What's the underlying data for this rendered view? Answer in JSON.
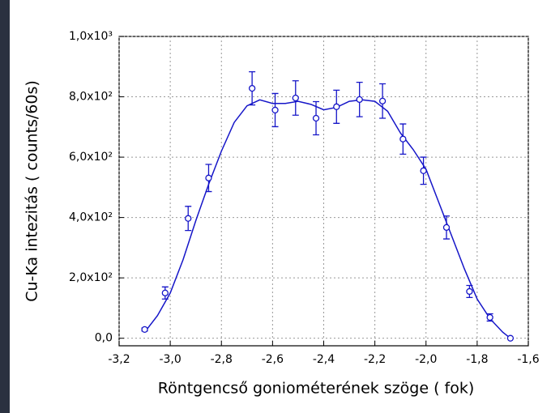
{
  "chart_data": {
    "type": "scatter",
    "x_label": "Röntgencső goniométerének szöge (   fok)",
    "y_label": "Cu-Ka intezitás (  counts/60s)",
    "x": [
      -3.1,
      -3.02,
      -2.93,
      -2.85,
      -2.68,
      -2.59,
      -2.51,
      -2.43,
      -2.35,
      -2.26,
      -2.17,
      -2.09,
      -2.01,
      -1.92,
      -1.83,
      -1.75,
      -1.67
    ],
    "values": [
      29,
      150,
      397,
      531,
      828,
      756,
      796,
      729,
      767,
      791,
      786,
      660,
      555,
      367,
      155,
      69,
      0
    ],
    "errors": [
      5,
      20,
      40,
      45,
      55,
      55,
      57,
      55,
      55,
      57,
      57,
      50,
      45,
      38,
      20,
      12,
      0
    ],
    "color": "#1515c8",
    "fit": {
      "color": "#1515c8",
      "x": [
        -3.1,
        -3.05,
        -3.0,
        -2.95,
        -2.9,
        -2.85,
        -2.8,
        -2.75,
        -2.7,
        -2.65,
        -2.6,
        -2.55,
        -2.5,
        -2.45,
        -2.4,
        -2.35,
        -2.3,
        -2.25,
        -2.2,
        -2.15,
        -2.1,
        -2.05,
        -2.0,
        -1.95,
        -1.9,
        -1.85,
        -1.8,
        -1.75,
        -1.7,
        -1.67
      ],
      "values": [
        20,
        75,
        150,
        260,
        390,
        510,
        620,
        715,
        770,
        790,
        778,
        778,
        785,
        775,
        757,
        765,
        785,
        790,
        785,
        752,
        680,
        625,
        560,
        450,
        340,
        230,
        130,
        65,
        20,
        0
      ]
    },
    "xlim": [
      -3.2,
      -1.6
    ],
    "ylim": [
      -25,
      1000
    ],
    "xticks": [
      {
        "value": -3.2,
        "label": "-3,2"
      },
      {
        "value": -3.0,
        "label": "-3,0"
      },
      {
        "value": -2.8,
        "label": "-2,8"
      },
      {
        "value": -2.6,
        "label": "-2,6"
      },
      {
        "value": -2.4,
        "label": "-2,4"
      },
      {
        "value": -2.2,
        "label": "-2,2"
      },
      {
        "value": -2.0,
        "label": "-2,0"
      },
      {
        "value": -1.8,
        "label": "-1,8"
      },
      {
        "value": -1.6,
        "label": "-1,6"
      }
    ],
    "yticks": [
      {
        "value": 0,
        "label": "0,0"
      },
      {
        "value": 200,
        "label": "2,0x10²"
      },
      {
        "value": 400,
        "label": "4,0x10²"
      },
      {
        "value": 600,
        "label": "6,0x10²"
      },
      {
        "value": 800,
        "label": "8,0x10²"
      },
      {
        "value": 1000,
        "label": "1,0x10³"
      }
    ],
    "grid": true
  }
}
